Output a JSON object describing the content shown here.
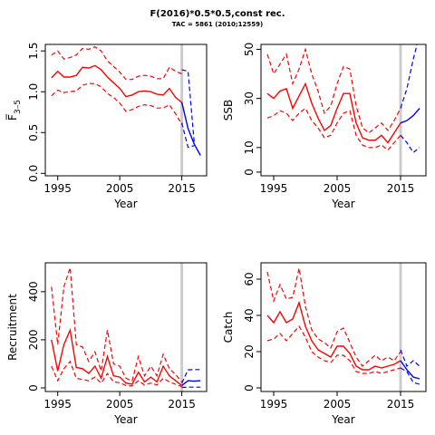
{
  "title": "F(2016)*0.5*0.5,const rec.",
  "subtitle": "TAC = 5861 (2010;12559)",
  "colors": {
    "historic": "#ff0000",
    "projection": "#0000ff",
    "marker_line": "#cccccc"
  },
  "chart_data": [
    {
      "type": "line",
      "ylabel": "F̅",
      "ylabel_sub": "3–5",
      "xlabel": "Year",
      "xlim": [
        1993,
        2019
      ],
      "ylim": [
        -0.03,
        1.58
      ],
      "xticks": [
        1995,
        2005,
        2015
      ],
      "yticks": [
        0.0,
        0.5,
        1.0,
        1.5
      ],
      "ytick_labels": [
        "0.0",
        "0.5",
        "1.0",
        "1.5"
      ],
      "marker_year": 2015,
      "series": [
        {
          "role": "historic",
          "x": [
            1994,
            1995,
            1996,
            1997,
            1998,
            1999,
            2000,
            2001,
            2002,
            2003,
            2004,
            2005,
            2006,
            2007,
            2008,
            2009,
            2010,
            2011,
            2012,
            2013,
            2014,
            2015
          ],
          "y": [
            1.17,
            1.25,
            1.18,
            1.18,
            1.2,
            1.3,
            1.29,
            1.32,
            1.27,
            1.18,
            1.11,
            1.04,
            0.94,
            0.96,
            1.0,
            1.01,
            1.0,
            0.97,
            0.96,
            1.04,
            0.93,
            0.87
          ]
        },
        {
          "role": "historic_upper",
          "x": [
            1994,
            1995,
            1996,
            1997,
            1998,
            1999,
            2000,
            2001,
            2002,
            2003,
            2004,
            2005,
            2006,
            2007,
            2008,
            2009,
            2010,
            2011,
            2012,
            2013,
            2014,
            2015
          ],
          "y": [
            1.45,
            1.5,
            1.4,
            1.42,
            1.45,
            1.53,
            1.52,
            1.55,
            1.5,
            1.38,
            1.31,
            1.24,
            1.15,
            1.15,
            1.19,
            1.2,
            1.19,
            1.16,
            1.16,
            1.3,
            1.25,
            1.22
          ]
        },
        {
          "role": "historic_lower",
          "x": [
            1994,
            1995,
            1996,
            1997,
            1998,
            1999,
            2000,
            2001,
            2002,
            2003,
            2004,
            2005,
            2006,
            2007,
            2008,
            2009,
            2010,
            2011,
            2012,
            2013,
            2014,
            2015
          ],
          "y": [
            0.95,
            1.02,
            0.99,
            1.0,
            1.01,
            1.08,
            1.1,
            1.1,
            1.06,
            0.98,
            0.93,
            0.86,
            0.76,
            0.78,
            0.82,
            0.84,
            0.83,
            0.8,
            0.8,
            0.84,
            0.73,
            0.6
          ]
        },
        {
          "role": "projection",
          "x": [
            2015,
            2016,
            2017,
            2018
          ],
          "y": [
            0.87,
            0.55,
            0.36,
            0.22
          ]
        },
        {
          "role": "projection_upper",
          "x": [
            2015,
            2016,
            2017
          ],
          "y": [
            1.27,
            1.25,
            0.38
          ]
        },
        {
          "role": "projection_lower",
          "x": [
            2015,
            2016,
            2017
          ],
          "y": [
            0.62,
            0.32,
            0.34
          ]
        }
      ]
    },
    {
      "type": "line",
      "ylabel": "SSB",
      "xlabel": "Year",
      "xlim": [
        1993,
        2019
      ],
      "ylim": [
        -1.5,
        52
      ],
      "xticks": [
        1995,
        2005,
        2015
      ],
      "yticks": [
        0,
        10,
        30,
        50
      ],
      "ytick_labels": [
        "0",
        "10",
        "30",
        "50"
      ],
      "marker_year": 2015,
      "series": [
        {
          "role": "historic",
          "x": [
            1994,
            1995,
            1996,
            1997,
            1998,
            1999,
            2000,
            2001,
            2002,
            2003,
            2004,
            2005,
            2006,
            2007,
            2008,
            2009,
            2010,
            2011,
            2012,
            2013,
            2014,
            2015
          ],
          "y": [
            32,
            30,
            33,
            34,
            26,
            31,
            36,
            28,
            22,
            17,
            19,
            26,
            32,
            32,
            20,
            14,
            13,
            13,
            15,
            12,
            16,
            20
          ]
        },
        {
          "role": "historic_upper",
          "x": [
            1994,
            1995,
            1996,
            1997,
            1998,
            1999,
            2000,
            2001,
            2002,
            2003,
            2004,
            2005,
            2006,
            2007,
            2008,
            2009,
            2010,
            2011,
            2012,
            2013,
            2014,
            2015
          ],
          "y": [
            48,
            40,
            44,
            48,
            36,
            42,
            50,
            40,
            33,
            24,
            27,
            36,
            43,
            42,
            27,
            18,
            16,
            18,
            20,
            17,
            21,
            26
          ]
        },
        {
          "role": "historic_lower",
          "x": [
            1994,
            1995,
            1996,
            1997,
            1998,
            1999,
            2000,
            2001,
            2002,
            2003,
            2004,
            2005,
            2006,
            2007,
            2008,
            2009,
            2010,
            2011,
            2012,
            2013,
            2014,
            2015
          ],
          "y": [
            22,
            23,
            25,
            24,
            21,
            24,
            26,
            21,
            18,
            14,
            15,
            20,
            24,
            25,
            15,
            11,
            10,
            10,
            11,
            9,
            12,
            15
          ]
        },
        {
          "role": "projection",
          "x": [
            2015,
            2016,
            2017,
            2018
          ],
          "y": [
            20,
            21,
            23,
            26
          ]
        },
        {
          "role": "projection_upper",
          "x": [
            2015,
            2016,
            2017,
            2018
          ],
          "y": [
            26,
            34,
            46,
            56
          ]
        },
        {
          "role": "projection_lower",
          "x": [
            2015,
            2016,
            2017,
            2018
          ],
          "y": [
            15,
            12,
            8,
            10
          ]
        }
      ]
    },
    {
      "type": "line",
      "ylabel": "Recruitment",
      "xlabel": "Year",
      "xlim": [
        1993,
        2019
      ],
      "ylim": [
        -15,
        520
      ],
      "xticks": [
        1995,
        2005,
        2015
      ],
      "yticks": [
        0,
        200,
        400
      ],
      "ytick_labels": [
        "0",
        "200",
        "400"
      ],
      "marker_year": 2015,
      "series": [
        {
          "role": "historic",
          "x": [
            1994,
            1995,
            1996,
            1997,
            1998,
            1999,
            2000,
            2001,
            2002,
            2003,
            2004,
            2005,
            2006,
            2007,
            2008,
            2009,
            2010,
            2011,
            2012,
            2013,
            2014,
            2015
          ],
          "y": [
            200,
            70,
            180,
            240,
            85,
            80,
            60,
            90,
            40,
            130,
            50,
            45,
            20,
            15,
            65,
            25,
            45,
            25,
            90,
            50,
            30,
            10
          ]
        },
        {
          "role": "historic_upper",
          "x": [
            1994,
            1995,
            1996,
            1997,
            1998,
            1999,
            2000,
            2001,
            2002,
            2003,
            2004,
            2005,
            2006,
            2007,
            2008,
            2009,
            2010,
            2011,
            2012,
            2013,
            2014,
            2015
          ],
          "y": [
            420,
            180,
            420,
            500,
            180,
            170,
            110,
            150,
            70,
            240,
            100,
            90,
            40,
            30,
            130,
            50,
            90,
            50,
            140,
            80,
            55,
            25
          ]
        },
        {
          "role": "historic_lower",
          "x": [
            1994,
            1995,
            1996,
            1997,
            1998,
            1999,
            2000,
            2001,
            2002,
            2003,
            2004,
            2005,
            2006,
            2007,
            2008,
            2009,
            2010,
            2011,
            2012,
            2013,
            2014,
            2015
          ],
          "y": [
            90,
            30,
            80,
            110,
            40,
            35,
            30,
            45,
            20,
            60,
            25,
            22,
            10,
            8,
            30,
            12,
            20,
            12,
            40,
            25,
            15,
            5
          ]
        },
        {
          "role": "projection",
          "x": [
            2015,
            2016,
            2017,
            2018
          ],
          "y": [
            10,
            30,
            28,
            30
          ]
        },
        {
          "role": "projection_upper",
          "x": [
            2015,
            2016,
            2017,
            2018
          ],
          "y": [
            20,
            75,
            76,
            76
          ]
        },
        {
          "role": "projection_lower",
          "x": [
            2015,
            2016,
            2017,
            2018
          ],
          "y": [
            2,
            3,
            3,
            3
          ]
        }
      ]
    },
    {
      "type": "line",
      "ylabel": "Catch",
      "xlabel": "Year",
      "xlim": [
        1993,
        2019
      ],
      "ylim": [
        -2,
        69
      ],
      "xticks": [
        1995,
        2005,
        2015
      ],
      "yticks": [
        0,
        20,
        40,
        60
      ],
      "ytick_labels": [
        "0",
        "20",
        "40",
        "60"
      ],
      "marker_year": 2015,
      "series": [
        {
          "role": "historic",
          "x": [
            1994,
            1995,
            1996,
            1997,
            1998,
            1999,
            2000,
            2001,
            2002,
            2003,
            2004,
            2005,
            2006,
            2007,
            2008,
            2009,
            2010,
            2011,
            2012,
            2013,
            2014,
            2015
          ],
          "y": [
            40,
            36,
            42,
            36,
            38,
            47,
            34,
            26,
            21,
            19,
            17,
            23,
            23,
            19,
            12,
            10,
            10,
            12,
            11,
            12,
            13,
            15
          ]
        },
        {
          "role": "historic_upper",
          "x": [
            1994,
            1995,
            1996,
            1997,
            1998,
            1999,
            2000,
            2001,
            2002,
            2003,
            2004,
            2005,
            2006,
            2007,
            2008,
            2009,
            2010,
            2011,
            2012,
            2013,
            2014,
            2015
          ],
          "y": [
            64,
            48,
            57,
            49,
            50,
            66,
            45,
            32,
            27,
            25,
            22,
            31,
            33,
            25,
            17,
            12,
            15,
            18,
            15,
            17,
            15,
            20
          ]
        },
        {
          "role": "historic_lower",
          "x": [
            1994,
            1995,
            1996,
            1997,
            1998,
            1999,
            2000,
            2001,
            2002,
            2003,
            2004,
            2005,
            2006,
            2007,
            2008,
            2009,
            2010,
            2011,
            2012,
            2013,
            2014,
            2015
          ],
          "y": [
            26,
            27,
            30,
            26,
            30,
            34,
            28,
            20,
            17,
            15,
            14,
            18,
            18,
            15,
            9,
            8,
            8,
            9,
            8,
            9,
            10,
            11
          ]
        },
        {
          "role": "projection",
          "x": [
            2015,
            2016,
            2017,
            2018
          ],
          "y": [
            15,
            10,
            6,
            5
          ]
        },
        {
          "role": "projection_upper",
          "x": [
            2015,
            2016,
            2017,
            2018
          ],
          "y": [
            21,
            12,
            15,
            12
          ]
        },
        {
          "role": "projection_lower",
          "x": [
            2015,
            2016,
            2017,
            2018
          ],
          "y": [
            11,
            9,
            3,
            2
          ]
        }
      ]
    }
  ]
}
